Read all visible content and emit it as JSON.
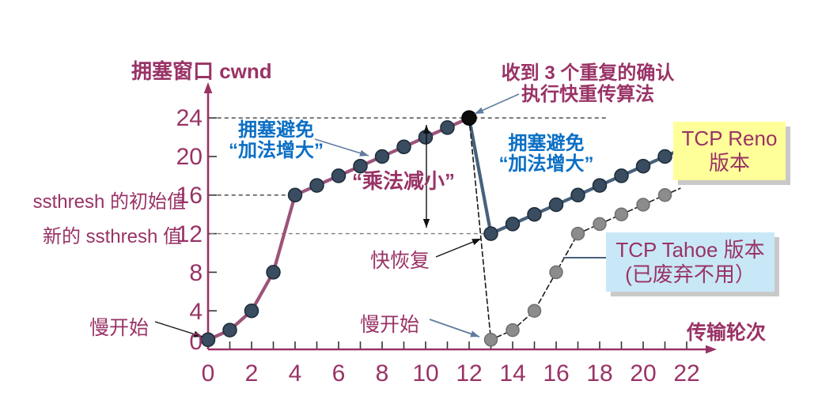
{
  "figure": {
    "kind": "TCP congestion control diagram (Reno vs Tahoe)"
  },
  "labels": {
    "y_axis_title": "拥塞窗口 cwnd",
    "x_axis_title": "传输轮次",
    "ssthresh_initial": "ssthresh 的初始值",
    "ssthresh_new": "新的 ssthresh 值",
    "slow_start_1": "慢开始",
    "slow_start_2": "慢开始",
    "fast_recovery": "快恢复",
    "multiplicative_decrease": "“乘法减小”",
    "congestion_avoidance_left_line1": "拥塞避免",
    "congestion_avoidance_left_line2": "“加法增大”",
    "congestion_avoidance_right_line1": "拥塞避免",
    "congestion_avoidance_right_line2": "“加法增大”",
    "dup_ack_line1": "收到 3 个重复的确认",
    "dup_ack_line2": "执行快重传算法",
    "reno_box_line1": "TCP Reno",
    "reno_box_line2": "版本",
    "tahoe_box_line1": "TCP Tahoe 版本",
    "tahoe_box_line2": "(已废弃不用）"
  },
  "colors": {
    "magenta_text": "#993366",
    "axis": "#993366",
    "reno_rise_line": "#9D537A",
    "reno_navy_line": "#47617C",
    "marker_fill": "#3A4C60",
    "marker_stroke": "#1C2B3A",
    "peak_marker": "#0d0d0d",
    "tahoe_marker": "#8C8C8C",
    "tahoe_marker_stroke": "#6F6F6F",
    "tahoe_line": "#1A1A1A",
    "blue_text": "#0B6FC5",
    "reno_box_bg": "#FFFF99",
    "tahoe_box_bg": "#C9E8F7",
    "slate_arrow": "#5F7C9E",
    "black_arrow": "#111111",
    "guide_dark": "#3c3c3c",
    "guide_gray": "#808080"
  },
  "chart_data": {
    "type": "line",
    "title": "",
    "xlabel": "传输轮次",
    "ylabel": "拥塞窗口 cwnd",
    "xlim": [
      0,
      23.4
    ],
    "ylim": [
      0,
      27
    ],
    "grid": false,
    "x_tick_labels": [
      "0",
      "2",
      "4",
      "6",
      "8",
      "10",
      "12",
      "14",
      "16",
      "18",
      "20",
      "22"
    ],
    "x_tick_values": [
      0,
      2,
      4,
      6,
      8,
      10,
      12,
      14,
      16,
      18,
      20,
      22
    ],
    "x_minor_tick_from": 1,
    "x_minor_tick_to": 22,
    "y_tick_labels": [
      "24",
      "20",
      "16",
      "12",
      "8",
      "4",
      "0"
    ],
    "y_tick_values": [
      24,
      20,
      16,
      12,
      8,
      4,
      0
    ],
    "series": [
      {
        "name": "TCP Reno slow start + congestion avoidance (additive increase)",
        "line": [
          [
            0,
            1
          ],
          [
            1,
            2
          ],
          [
            2,
            4
          ],
          [
            3,
            8
          ],
          [
            4,
            16
          ],
          [
            5,
            17
          ],
          [
            6,
            18
          ],
          [
            7,
            19
          ],
          [
            8,
            20
          ],
          [
            9,
            21
          ],
          [
            10,
            22
          ],
          [
            11,
            23
          ],
          [
            12,
            24
          ]
        ],
        "markers": [
          [
            0,
            1
          ],
          [
            1,
            2
          ],
          [
            2,
            4
          ],
          [
            3,
            8
          ],
          [
            4,
            16
          ],
          [
            5,
            17
          ],
          [
            6,
            18
          ],
          [
            7,
            19
          ],
          [
            8,
            20
          ],
          [
            9,
            21
          ],
          [
            10,
            22
          ],
          [
            11,
            23
          ]
        ],
        "color": "#9D537A",
        "width": 4.2,
        "dash": null,
        "marker_fill": "#3A4C60",
        "marker_stroke": "#1C2B3A",
        "marker_r": 8.5
      },
      {
        "name": "TCP Reno multiplicative decrease (fast recovery drop)",
        "line": [
          [
            12,
            24
          ],
          [
            13,
            12
          ]
        ],
        "markers": [],
        "color": "#47617C",
        "width": 4.2,
        "dash": null,
        "marker_fill": "#3A4C60",
        "marker_stroke": "#1C2B3A",
        "marker_r": 8.5
      },
      {
        "name": "TCP Reno congestion avoidance after fast recovery",
        "line": [
          [
            13,
            12
          ],
          [
            14,
            13
          ],
          [
            15,
            14
          ],
          [
            16,
            15
          ],
          [
            17,
            16
          ],
          [
            18,
            17
          ],
          [
            19,
            18
          ],
          [
            20,
            19
          ],
          [
            21,
            20
          ],
          [
            21.45,
            20.45
          ]
        ],
        "markers": [
          [
            13,
            12
          ],
          [
            14,
            13
          ],
          [
            15,
            14
          ],
          [
            16,
            15
          ],
          [
            17,
            16
          ],
          [
            18,
            17
          ],
          [
            19,
            18
          ],
          [
            20,
            19
          ],
          [
            21,
            20
          ]
        ],
        "color": "#47617C",
        "width": 4.2,
        "dash": null,
        "marker_fill": "#3A4C60",
        "marker_stroke": "#1C2B3A",
        "marker_r": 8.5
      },
      {
        "name": "TCP Tahoe (restart slow start, deprecated)",
        "line": [
          [
            12,
            24
          ],
          [
            13,
            1
          ],
          [
            14,
            2
          ],
          [
            15,
            4
          ],
          [
            16,
            8
          ],
          [
            17,
            12
          ],
          [
            18,
            13
          ],
          [
            19,
            14
          ],
          [
            20,
            15
          ],
          [
            21,
            16
          ],
          [
            21.7,
            16.7
          ]
        ],
        "markers": [
          [
            13,
            1
          ],
          [
            14,
            2
          ],
          [
            15,
            4
          ],
          [
            16,
            8
          ],
          [
            17,
            12
          ],
          [
            18,
            13
          ],
          [
            19,
            14
          ],
          [
            20,
            15
          ],
          [
            21,
            16
          ]
        ],
        "color": "#1A1A1A",
        "width": 1.6,
        "dash": "6,4",
        "marker_fill": "#8C8C8C",
        "marker_stroke": "#6F6F6F",
        "marker_r": 8
      }
    ],
    "special_markers": [
      {
        "x": 12,
        "y": 24,
        "fill": "#0d0d0d",
        "stroke": "#000000",
        "r": 9,
        "name": "peak-3-dup-ack-point"
      }
    ],
    "guides": [
      {
        "y": 24,
        "from_x": 0.1,
        "to_x": 18.4,
        "color": "#3c3c3c"
      },
      {
        "y": 16,
        "from_x": 0.1,
        "to_x": 3.9,
        "color": "#3c3c3c"
      },
      {
        "y": 12,
        "from_x": 0.1,
        "to_x": 12.9,
        "color": "#808080"
      }
    ]
  },
  "annotations": [
    {
      "name": "arrow-dup-ack-to-peak",
      "from": [
        656,
        119
      ],
      "to": [
        600,
        144
      ],
      "color": "#5F7C9E",
      "w": 1.6,
      "head": true,
      "both": false
    },
    {
      "name": "arrow-ca-left-to-line",
      "from": [
        398,
        176
      ],
      "to": [
        466,
        197
      ],
      "color": "#5F7C9E",
      "w": 1.6,
      "head": true,
      "both": false
    },
    {
      "name": "arrow-slow-start2-to-tahoe",
      "from": [
        543,
        404
      ],
      "to": [
        606,
        426
      ],
      "color": "#5F7C9E",
      "w": 1.8,
      "head": true,
      "both": false
    },
    {
      "name": "arrow-slow-start1-to-origin",
      "from": [
        196,
        407
      ],
      "to": [
        256,
        426
      ],
      "color": "#111111",
      "w": 1.4,
      "head": true,
      "both": false
    },
    {
      "name": "arrow-fast-recovery-to-point",
      "from": [
        551,
        325
      ],
      "to": [
        608,
        302
      ],
      "color": "#111111",
      "w": 1.4,
      "head": true,
      "both": false
    },
    {
      "name": "arrow-multiplicative-decrease-span",
      "from": [
        539,
        158
      ],
      "to": [
        539,
        288
      ],
      "color": "#111111",
      "w": 1.4,
      "head": true,
      "both": true
    },
    {
      "name": "line-tahoe-box-pointer",
      "from": [
        712,
        326
      ],
      "to": [
        766,
        326
      ],
      "color": "#47617C",
      "w": 2,
      "head": false,
      "both": false
    }
  ]
}
